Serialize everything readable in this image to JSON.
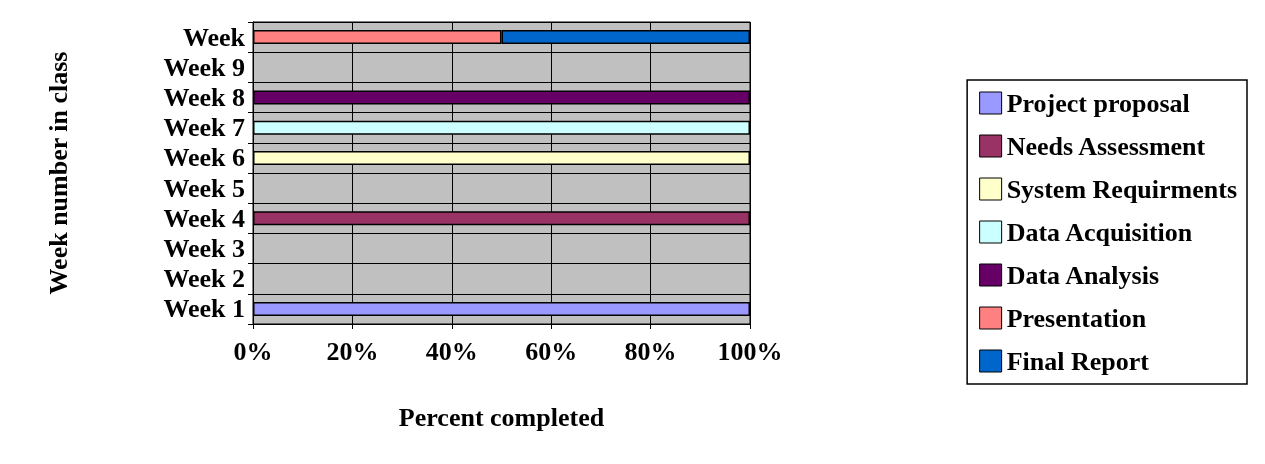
{
  "chart_data": {
    "type": "bar",
    "orientation": "horizontal",
    "stacked": true,
    "xlabel": "Percent completed",
    "ylabel": "Week number in class",
    "categories": [
      "Week",
      "Week 9",
      "Week 8",
      "Week 7",
      "Week 6",
      "Week 5",
      "Week 4",
      "Week 3",
      "Week 2",
      "Week 1"
    ],
    "series": [
      {
        "name": "Project proposal",
        "color": "#9999ff",
        "values": [
          null,
          null,
          null,
          null,
          null,
          null,
          null,
          null,
          null,
          100
        ]
      },
      {
        "name": "Needs Assessment",
        "color": "#993366",
        "values": [
          null,
          null,
          null,
          null,
          null,
          null,
          100,
          null,
          null,
          null
        ]
      },
      {
        "name": "System Requirments",
        "color": "#ffffcc",
        "values": [
          null,
          null,
          null,
          null,
          100,
          null,
          null,
          null,
          null,
          null
        ]
      },
      {
        "name": "Data Acquisition",
        "color": "#ccffff",
        "values": [
          null,
          null,
          null,
          100,
          null,
          null,
          null,
          null,
          null,
          null
        ]
      },
      {
        "name": "Data Analysis",
        "color": "#660066",
        "values": [
          null,
          null,
          100,
          null,
          null,
          null,
          null,
          null,
          null,
          null
        ]
      },
      {
        "name": "Presentation",
        "color": "#ff8080",
        "values": [
          50,
          null,
          null,
          null,
          null,
          null,
          null,
          null,
          null,
          null
        ]
      },
      {
        "name": "Final Report",
        "color": "#0066cc",
        "values": [
          50,
          null,
          null,
          null,
          null,
          null,
          null,
          null,
          null,
          null
        ]
      }
    ],
    "xlim": [
      0,
      100
    ],
    "xticks": [
      {
        "value": 0,
        "label": "0%"
      },
      {
        "value": 20,
        "label": "20%"
      },
      {
        "value": 40,
        "label": "40%"
      },
      {
        "value": 60,
        "label": "60%"
      },
      {
        "value": 80,
        "label": "80%"
      },
      {
        "value": 100,
        "label": "100%"
      }
    ],
    "grid": true,
    "legend": "right"
  }
}
